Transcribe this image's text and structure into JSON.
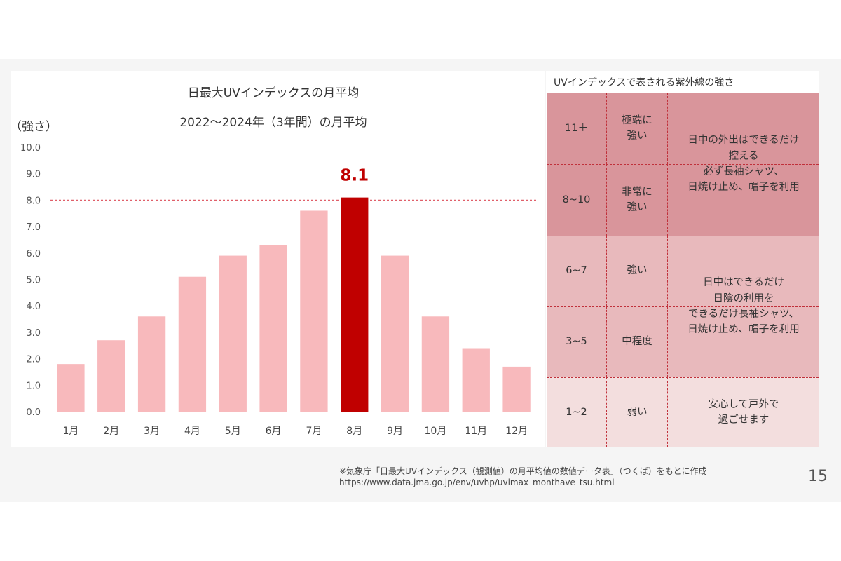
{
  "chart_title": "日最大UVインデックスの月平均",
  "chart_subtitle": "2022～2024年（3年間）の月平均",
  "ylabel": "（強さ）",
  "chart_data": {
    "type": "bar",
    "title": "日最大UVインデックスの月平均",
    "subtitle": "2022～2024年（3年間）の月平均",
    "ylabel": "（強さ）",
    "xlabel": "",
    "categories": [
      "1月",
      "2月",
      "3月",
      "4月",
      "5月",
      "6月",
      "7月",
      "8月",
      "9月",
      "10月",
      "11月",
      "12月"
    ],
    "values": [
      1.8,
      2.7,
      3.6,
      5.1,
      5.9,
      6.3,
      7.6,
      8.1,
      5.9,
      3.6,
      2.4,
      1.7
    ],
    "ylim": [
      0,
      10
    ],
    "yticks": [
      "0.0",
      "1.0",
      "2.0",
      "3.0",
      "4.0",
      "5.0",
      "6.0",
      "7.0",
      "8.0",
      "9.0",
      "10.0"
    ],
    "highlight_index": 7,
    "highlight_label": "8.1",
    "reference_line": 8.0,
    "grid": false,
    "bar_color": "#f8b9bc",
    "highlight_color": "#c00000",
    "reference_color": "#e0606a"
  },
  "uv_table": {
    "title": "UVインデックスで表される紫外線の強さ",
    "rows": [
      {
        "range": "11＋",
        "level": "極端に\n強い",
        "color": "#d9959b"
      },
      {
        "range": "8~10",
        "level": "非常に\n強い",
        "color": "#d9959b"
      },
      {
        "range": "6~7",
        "level": "強い",
        "color": "#e8b9bc"
      },
      {
        "range": "3~5",
        "level": "中程度",
        "color": "#e8b9bc"
      },
      {
        "range": "1~2",
        "level": "弱い",
        "color": "#f3dede"
      }
    ],
    "advice": [
      "日中の外出はできるだけ\n控える\n必ず長袖シャツ、\n日焼け止め、帽子を利用",
      "日中はできるだけ\n日陰の利用を\nできるだけ長袖シャツ、\n日焼け止め、帽子を利用",
      "安心して戸外で\n過ごせます"
    ]
  },
  "source_note": "※気象庁「日最大UVインデックス（観測値）の月平均値の数値データ表」（つくば）をもとに作成",
  "source_url": "https://www.data.jma.go.jp/env/uvhp/uvimax_monthave_tsu.html",
  "page_number": "15"
}
